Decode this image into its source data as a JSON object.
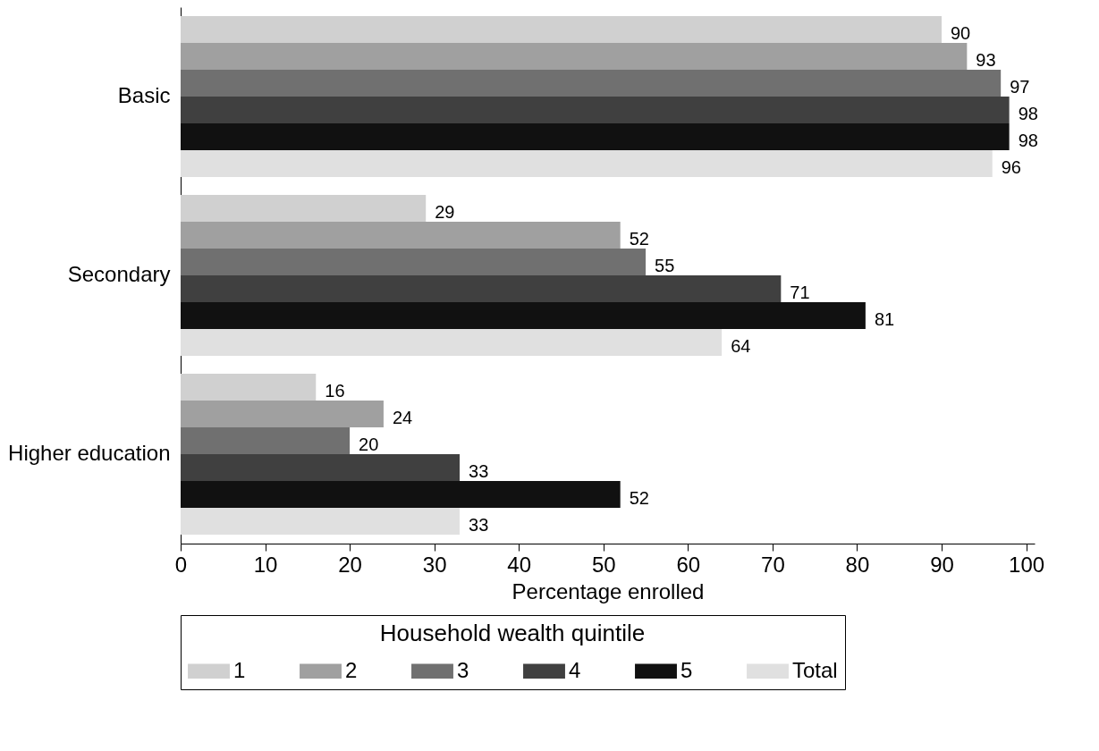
{
  "chart_data": {
    "type": "bar",
    "orientation": "horizontal",
    "categories": [
      "Basic",
      "Secondary",
      "Higher education"
    ],
    "series": [
      {
        "name": "1",
        "color": "#d0d0d0",
        "values": [
          90,
          29,
          16
        ]
      },
      {
        "name": "2",
        "color": "#a0a0a0",
        "values": [
          93,
          52,
          24
        ]
      },
      {
        "name": "3",
        "color": "#707070",
        "values": [
          97,
          55,
          20
        ]
      },
      {
        "name": "4",
        "color": "#404040",
        "values": [
          98,
          71,
          33
        ]
      },
      {
        "name": "5",
        "color": "#111111",
        "values": [
          98,
          81,
          52
        ]
      },
      {
        "name": "Total",
        "color": "#e0e0e0",
        "values": [
          96,
          64,
          33
        ]
      }
    ],
    "xlabel": "Percentage enrolled",
    "legend_title": "Household wealth quintile",
    "legend": "bottom",
    "xlim": [
      0,
      101
    ],
    "xticks": [
      0,
      10,
      20,
      30,
      40,
      50,
      60,
      70,
      80,
      90,
      100
    ],
    "data_labels": true,
    "grid": false
  }
}
